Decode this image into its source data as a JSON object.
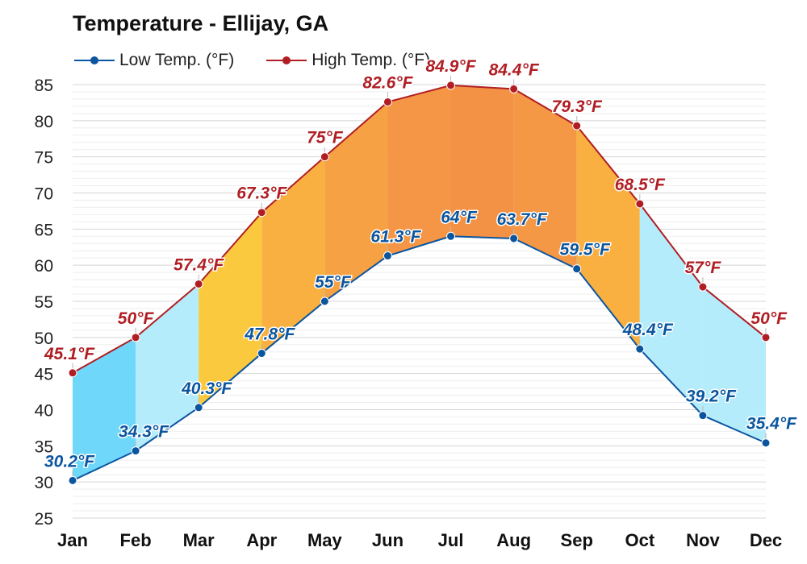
{
  "chart_data": {
    "type": "line",
    "title": "Temperature - Ellijay, GA",
    "categories": [
      "Jan",
      "Feb",
      "Mar",
      "Apr",
      "May",
      "Jun",
      "Jul",
      "Aug",
      "Sep",
      "Oct",
      "Nov",
      "Dec"
    ],
    "series": [
      {
        "name": "Low Temp. (°F)",
        "values": [
          30.2,
          34.3,
          40.3,
          47.8,
          55,
          61.3,
          64,
          63.7,
          59.5,
          48.4,
          39.2,
          35.4
        ],
        "labels": [
          "30.2°F",
          "34.3°F",
          "40.3°F",
          "47.8°F",
          "55°F",
          "61.3°F",
          "64°F",
          "63.7°F",
          "59.5°F",
          "48.4°F",
          "39.2°F",
          "35.4°F"
        ],
        "color": "#0b559f"
      },
      {
        "name": "High Temp. (°F)",
        "values": [
          45.1,
          50,
          57.4,
          67.3,
          75,
          82.6,
          84.9,
          84.4,
          79.3,
          68.5,
          57,
          50
        ],
        "labels": [
          "45.1°F",
          "50°F",
          "57.4°F",
          "67.3°F",
          "75°F",
          "82.6°F",
          "84.9°F",
          "84.4°F",
          "79.3°F",
          "68.5°F",
          "57°F",
          "50°F"
        ],
        "color": "#b01e24"
      }
    ],
    "ylim": [
      25,
      85
    ],
    "yticks": [
      "85",
      "80",
      "75",
      "70",
      "65",
      "60",
      "55",
      "50",
      "45",
      "40",
      "35",
      "30",
      "25"
    ],
    "grid": true,
    "legend": "top-left",
    "band_colors": [
      "#6fd8fa",
      "#b5ecfc",
      "#fbc93e",
      "#f9b041",
      "#f6a143",
      "#f49645",
      "#f39245",
      "#f49845",
      "#f9b041",
      "#b5ecfc",
      "#b5ecfc",
      "#6fd8fa"
    ],
    "xlabel": "",
    "ylabel": ""
  }
}
